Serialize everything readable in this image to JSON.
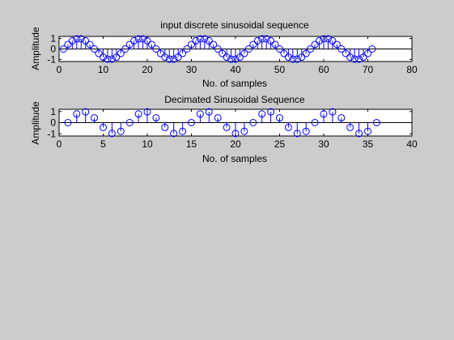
{
  "figure": {
    "background": "#cccccc"
  },
  "chart_data": [
    {
      "type": "stem",
      "title": "input discrete sinusoidal sequence",
      "xlabel": "No. of samples",
      "ylabel": "Amplitude",
      "xlim": [
        0,
        80
      ],
      "ylim": [
        -1.2,
        1.2
      ],
      "xticks": [
        0,
        10,
        20,
        30,
        40,
        50,
        60,
        70,
        80
      ],
      "yticks": [
        -1,
        0,
        1
      ],
      "xtick_labels": [
        "0",
        "10",
        "20",
        "30",
        "40",
        "50",
        "60",
        "70",
        "80"
      ],
      "ytick_labels": [
        "-1",
        "0",
        "1"
      ],
      "grid": false,
      "color": "#0000ff",
      "x": [
        1,
        2,
        3,
        4,
        5,
        6,
        7,
        8,
        9,
        10,
        11,
        12,
        13,
        14,
        15,
        16,
        17,
        18,
        19,
        20,
        21,
        22,
        23,
        24,
        25,
        26,
        27,
        28,
        29,
        30,
        31,
        32,
        33,
        34,
        35,
        36,
        37,
        38,
        39,
        40,
        41,
        42,
        43,
        44,
        45,
        46,
        47,
        48,
        49,
        50,
        51,
        52,
        53,
        54,
        55,
        56,
        57,
        58,
        59,
        60,
        61,
        62,
        63,
        64,
        65,
        66,
        67,
        68,
        69,
        70,
        71
      ],
      "values": [
        0,
        0.43,
        0.78,
        0.97,
        0.97,
        0.78,
        0.43,
        0,
        -0.43,
        -0.78,
        -0.97,
        -0.97,
        -0.78,
        -0.43,
        0,
        0.43,
        0.78,
        0.97,
        0.97,
        0.78,
        0.43,
        0,
        -0.43,
        -0.78,
        -0.97,
        -0.97,
        -0.78,
        -0.43,
        0,
        0.43,
        0.78,
        0.97,
        0.97,
        0.78,
        0.43,
        0,
        -0.43,
        -0.78,
        -0.97,
        -0.97,
        -0.78,
        -0.43,
        0,
        0.43,
        0.78,
        0.97,
        0.97,
        0.78,
        0.43,
        0,
        -0.43,
        -0.78,
        -0.97,
        -0.97,
        -0.78,
        -0.43,
        0,
        0.43,
        0.78,
        0.97,
        0.97,
        0.78,
        0.43,
        0,
        -0.43,
        -0.78,
        -0.97,
        -0.97,
        -0.78,
        -0.43,
        0
      ]
    },
    {
      "type": "stem",
      "title": "Decimated Sinusoidal Sequence",
      "xlabel": "No. of samples",
      "ylabel": "Amplitude",
      "xlim": [
        0,
        40
      ],
      "ylim": [
        -1.2,
        1.2
      ],
      "xticks": [
        0,
        5,
        10,
        15,
        20,
        25,
        30,
        35,
        40
      ],
      "yticks": [
        -1,
        0,
        1
      ],
      "xtick_labels": [
        "0",
        "5",
        "10",
        "15",
        "20",
        "25",
        "30",
        "35",
        "40"
      ],
      "ytick_labels": [
        "-1",
        "0",
        "1"
      ],
      "grid": false,
      "color": "#0000ff",
      "x": [
        1,
        2,
        3,
        4,
        5,
        6,
        7,
        8,
        9,
        10,
        11,
        12,
        13,
        14,
        15,
        16,
        17,
        18,
        19,
        20,
        21,
        22,
        23,
        24,
        25,
        26,
        27,
        28,
        29,
        30,
        31,
        32,
        33,
        34,
        35,
        36
      ],
      "values": [
        0,
        0.78,
        0.97,
        0.43,
        -0.43,
        -0.97,
        -0.78,
        0,
        0.78,
        0.97,
        0.43,
        -0.43,
        -0.97,
        -0.78,
        0,
        0.78,
        0.97,
        0.43,
        -0.43,
        -0.97,
        -0.78,
        0,
        0.78,
        0.97,
        0.43,
        -0.43,
        -0.97,
        -0.78,
        0,
        0.78,
        0.97,
        0.43,
        -0.43,
        -0.97,
        -0.78,
        0
      ]
    }
  ]
}
